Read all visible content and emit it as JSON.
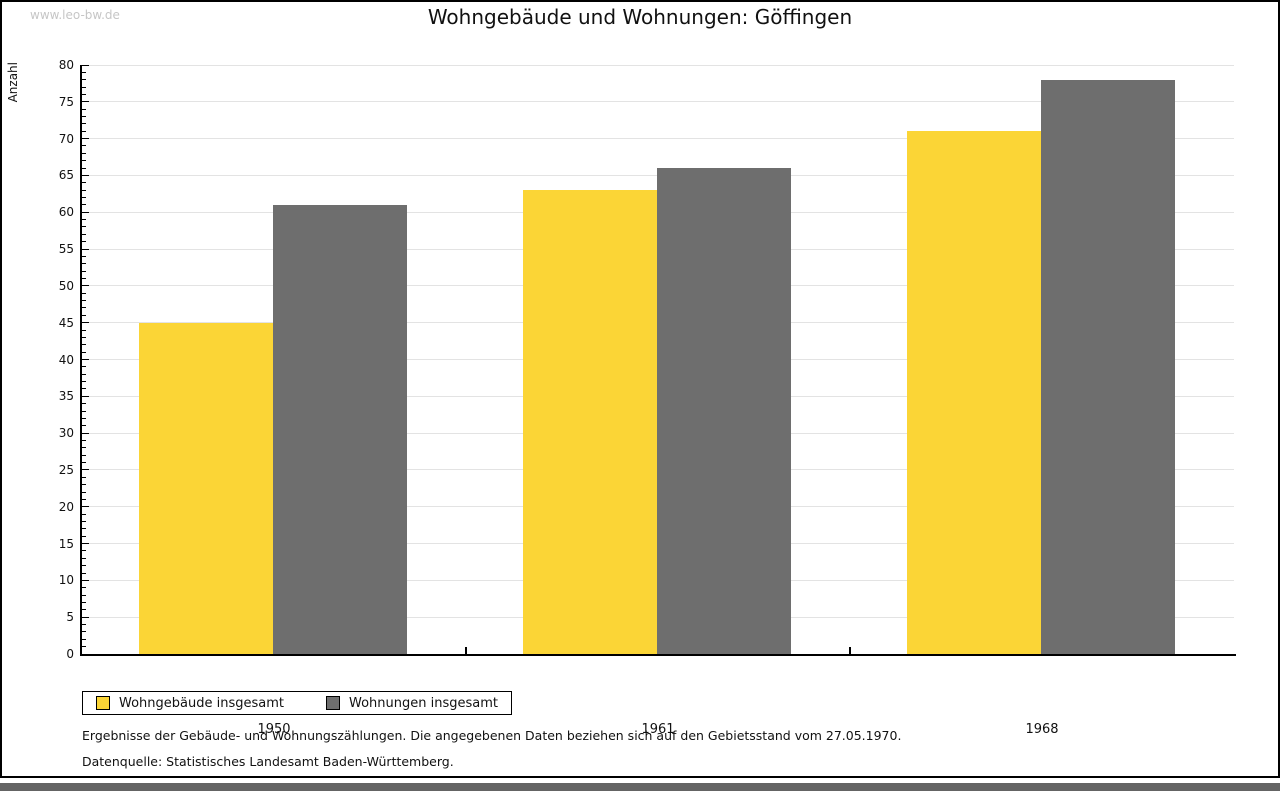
{
  "watermark": "www.leo-bw.de",
  "chart_data": {
    "type": "bar",
    "title": "Wohngebäude und Wohnungen: Göffingen",
    "categories": [
      "1950",
      "1961",
      "1968"
    ],
    "series": [
      {
        "name": "Wohngebäude insgesamt",
        "color": "#FBD536",
        "values": [
          45,
          63,
          71
        ]
      },
      {
        "name": "Wohnungen insgesamt",
        "color": "#6E6E6E",
        "values": [
          61,
          66,
          78
        ]
      }
    ],
    "xlabel": "",
    "ylabel": "Anzahl",
    "ylim": [
      0,
      80
    ],
    "ytick_step": 5,
    "minor_tick_step": 1,
    "grid": true,
    "legend_position": "bottom-left"
  },
  "footnotes": [
    "Ergebnisse der Gebäude- und Wohnungszählungen. Die angegebenen Daten beziehen sich auf den Gebietsstand vom 27.05.1970.",
    "Datenquelle: Statistisches Landesamt Baden-Württemberg."
  ],
  "colors": {
    "bar_yellow": "#FBD536",
    "bar_gray": "#6E6E6E",
    "gridline": "#E3E3E3",
    "watermark": "#C6C6C6",
    "bottom_strip": "#646464",
    "frame_border": "#000000"
  }
}
